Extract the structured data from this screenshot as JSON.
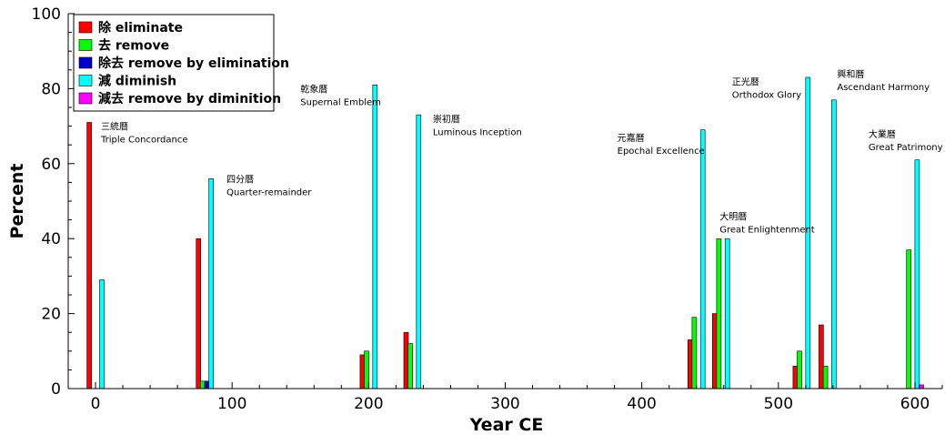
{
  "chart_data": {
    "type": "bar",
    "xlabel": "Year CE",
    "ylabel": "Percent",
    "xlim": [
      -20,
      620
    ],
    "ylim": [
      0,
      100
    ],
    "xticks": [
      0,
      100,
      200,
      300,
      400,
      500,
      600
    ],
    "yticks": [
      0,
      20,
      40,
      60,
      80,
      100
    ],
    "grid": false,
    "legend_position": "top-left",
    "series": [
      {
        "name": "除 eliminate",
        "color": "#ff0000",
        "offset": -6,
        "x": [
          0,
          80,
          200,
          232,
          440,
          458,
          517,
          536,
          597
        ],
        "values": [
          71,
          40,
          9,
          15,
          13,
          20,
          6,
          17,
          0
        ]
      },
      {
        "name": "去 remove",
        "color": "#00ff00",
        "offset": -2,
        "x": [
          0,
          80,
          200,
          232,
          440,
          458,
          517,
          536,
          597
        ],
        "values": [
          0,
          2,
          10,
          12,
          19,
          40,
          10,
          6,
          37
        ]
      },
      {
        "name": "除去 remove by elimination",
        "color": "#0000cc",
        "offset": 2,
        "x": [
          0,
          80,
          200,
          232,
          440,
          458,
          517,
          536,
          597
        ],
        "values": [
          0,
          2,
          0,
          0,
          0,
          0,
          0,
          0,
          0
        ]
      },
      {
        "name": "減 diminish",
        "color": "#00ffff",
        "offset": 6,
        "x": [
          0,
          80,
          200,
          232,
          440,
          458,
          517,
          536,
          597
        ],
        "values": [
          29,
          56,
          81,
          73,
          69,
          40,
          83,
          77,
          61
        ]
      },
      {
        "name": "減去 remove by diminition",
        "color": "#ff00ff",
        "offset": 10,
        "x": [
          0,
          80,
          200,
          232,
          440,
          458,
          517,
          536,
          597
        ],
        "values": [
          0,
          0,
          0,
          0,
          0,
          0,
          0,
          0,
          1
        ]
      }
    ],
    "annotations": [
      {
        "x": 4,
        "y": 69,
        "line1": "三統曆",
        "line2": "Triple Concordance"
      },
      {
        "x": 96,
        "y": 55,
        "line1": "四分曆",
        "line2": "Quarter-remainder"
      },
      {
        "x": 150,
        "y": 79,
        "line1": "乾象曆",
        "line2": "Supernal Emblem"
      },
      {
        "x": 247,
        "y": 71,
        "line1": "崇初曆",
        "line2": "Luminous Inception"
      },
      {
        "x": 382,
        "y": 66,
        "line1": "元嘉曆",
        "line2": "Epochal Excellence"
      },
      {
        "x": 457,
        "y": 45,
        "line1": "大明曆",
        "line2": "Great Enlightenment"
      },
      {
        "x": 466,
        "y": 81,
        "line1": "正光曆",
        "line2": "Orthodox Glory"
      },
      {
        "x": 543,
        "y": 83,
        "line1": "興和曆",
        "line2": "Ascendant Harmony"
      },
      {
        "x": 566,
        "y": 67,
        "line1": "大業曆",
        "line2": "Great Patrimony"
      }
    ]
  }
}
